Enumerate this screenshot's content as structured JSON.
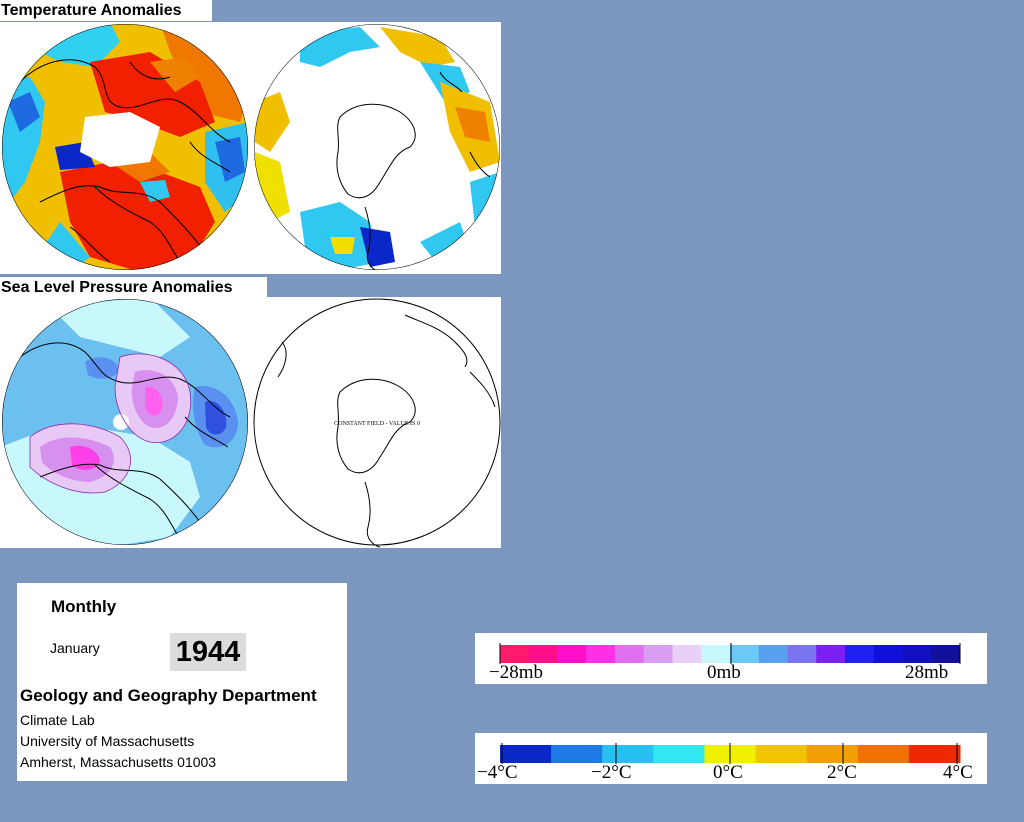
{
  "temperature": {
    "title": "Temperature Anomalies"
  },
  "pressure": {
    "title": "Sea Level Pressure Anomalies",
    "sh_note": "CONSTANT FIELD - VALUE IS 0"
  },
  "info": {
    "period": "Monthly",
    "month": "January",
    "year": "1944",
    "department": "Geology and Geography Department",
    "lab": "Climate Lab",
    "university": "University of Massachusetts",
    "address": "Amherst, Massachusetts 01003"
  },
  "legend_pressure": {
    "labels": [
      "−28mb",
      "0mb",
      "28mb"
    ],
    "colors": [
      "#ff1a6e",
      "#ff0f8a",
      "#ff10c8",
      "#ff30e8",
      "#e070f0",
      "#d89ef0",
      "#e8d0f8",
      "#c8f8fc",
      "#6cc8f4",
      "#5aa0f0",
      "#7a74f0",
      "#7a20f0",
      "#2020f0",
      "#1010d8",
      "#1010c0",
      "#10109a"
    ]
  },
  "legend_temperature": {
    "labels": [
      "−4°C",
      "−2°C",
      "0°C",
      "2°C",
      "4°C"
    ],
    "colors": [
      "#0a28c8",
      "#1e7ae6",
      "#28c0f0",
      "#30e8f0",
      "#f0f000",
      "#f0c400",
      "#f0a000",
      "#f07000",
      "#f02800"
    ]
  },
  "colors": {
    "page_background": "#7b97bf"
  }
}
